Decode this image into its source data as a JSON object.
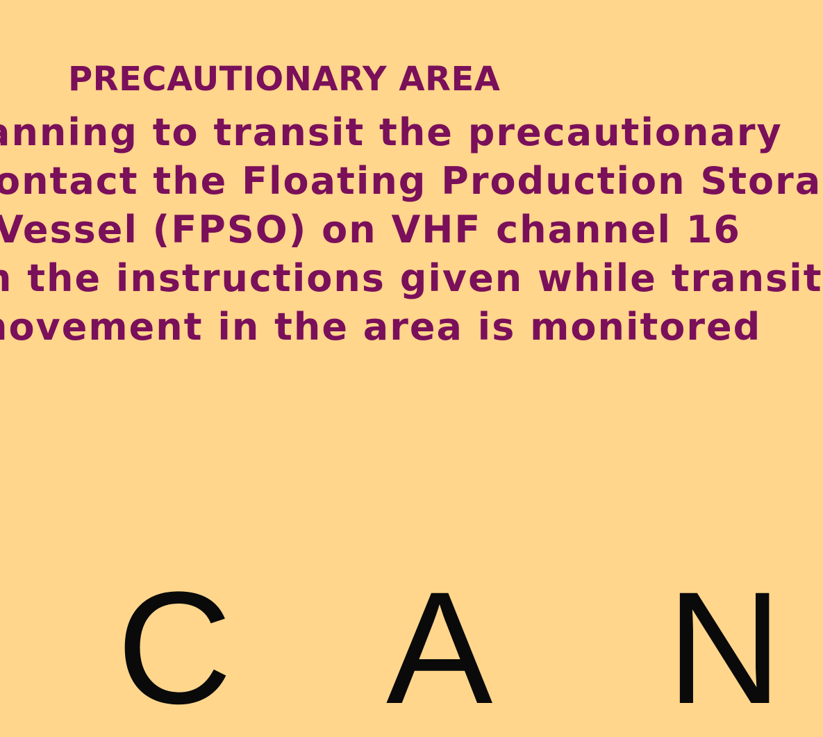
{
  "map": {
    "background": "#ffd68c",
    "text_color": "#7a0f5a",
    "label_color": "#0a0a0a",
    "notice": {
      "title": "PRECAUTIONARY AREA",
      "lines": [
        "anning to transit the precautionary",
        "ontact the Floating Production Stora",
        "Vessel (FPSO) on VHF channel 16",
        "n the instructions given while transit",
        "novement in the area is monitored"
      ]
    },
    "place_label_letters": [
      "C",
      "A",
      "N"
    ]
  }
}
